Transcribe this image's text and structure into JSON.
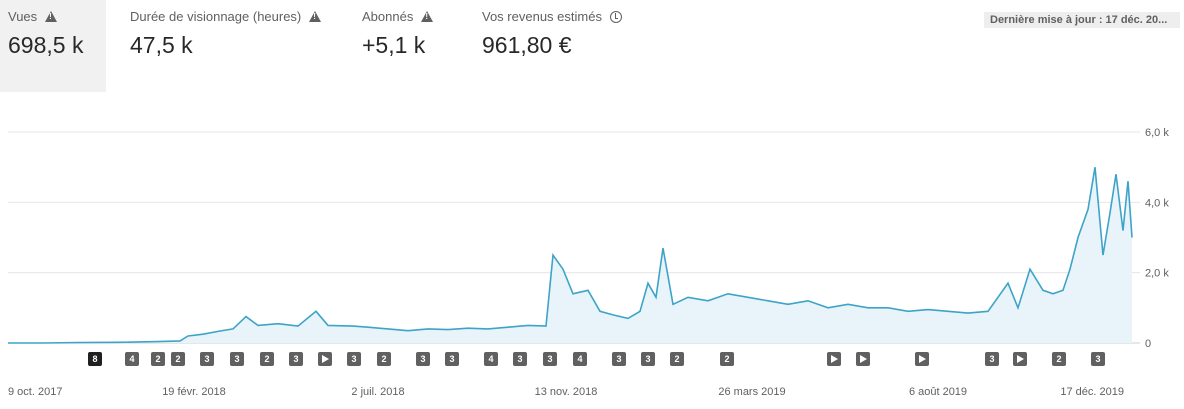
{
  "metrics": [
    {
      "label": "Vues",
      "value": "698,5 k",
      "icon": "warning-icon",
      "selected": true
    },
    {
      "label": "Durée de visionnage (heures)",
      "value": "47,5 k",
      "icon": "warning-icon",
      "selected": false
    },
    {
      "label": "Abonnés",
      "value": "+5,1 k",
      "icon": "warning-icon",
      "selected": false
    },
    {
      "label": "Vos revenus estimés",
      "value": "961,80 €",
      "icon": "clock-icon",
      "selected": false
    }
  ],
  "updated": "Dernière mise à jour : 17 déc. 20...",
  "chart_data": {
    "type": "area",
    "series": [
      {
        "name": "Vues",
        "color": "#3ea3c8",
        "points": [
          [
            "0",
            0
          ],
          [
            "35",
            0
          ],
          [
            "70",
            10
          ],
          [
            "110",
            20
          ],
          [
            "150",
            40
          ],
          [
            "172",
            60
          ],
          [
            "180",
            200
          ],
          [
            "195",
            250
          ],
          [
            "210",
            330
          ],
          [
            "225",
            400
          ],
          [
            "238",
            750
          ],
          [
            "250",
            500
          ],
          [
            "270",
            550
          ],
          [
            "290",
            480
          ],
          [
            "308",
            900
          ],
          [
            "320",
            500
          ],
          [
            "345",
            480
          ],
          [
            "360",
            450
          ],
          [
            "380",
            400
          ],
          [
            "400",
            350
          ],
          [
            "420",
            400
          ],
          [
            "440",
            380
          ],
          [
            "460",
            420
          ],
          [
            "480",
            400
          ],
          [
            "500",
            450
          ],
          [
            "520",
            500
          ],
          [
            "538",
            480
          ],
          [
            "545",
            2500
          ],
          [
            "555",
            2100
          ],
          [
            "565",
            1400
          ],
          [
            "580",
            1500
          ],
          [
            "592",
            900
          ],
          [
            "605",
            800
          ],
          [
            "620",
            700
          ],
          [
            "632",
            900
          ],
          [
            "640",
            1700
          ],
          [
            "648",
            1300
          ],
          [
            "655",
            2700
          ],
          [
            "665",
            1100
          ],
          [
            "680",
            1300
          ],
          [
            "700",
            1200
          ],
          [
            "720",
            1400
          ],
          [
            "740",
            1300
          ],
          [
            "760",
            1200
          ],
          [
            "780",
            1100
          ],
          [
            "800",
            1200
          ],
          [
            "820",
            1000
          ],
          [
            "840",
            1100
          ],
          [
            "860",
            1000
          ],
          [
            "880",
            1000
          ],
          [
            "900",
            900
          ],
          [
            "920",
            950
          ],
          [
            "940",
            900
          ],
          [
            "960",
            850
          ],
          [
            "980",
            900
          ],
          [
            "1000",
            1700
          ],
          [
            "1010",
            1000
          ],
          [
            "1022",
            2100
          ],
          [
            "1035",
            1500
          ],
          [
            "1045",
            1400
          ],
          [
            "1055",
            1500
          ],
          [
            "1062",
            2100
          ],
          [
            "1070",
            3000
          ],
          [
            "1080",
            3800
          ],
          [
            "1087",
            5000
          ],
          [
            "1095",
            2500
          ],
          [
            "1102",
            3700
          ],
          [
            "1108",
            4800
          ],
          [
            "1115",
            3200
          ],
          [
            "1120",
            4600
          ],
          [
            "1124",
            3000
          ]
        ]
      }
    ],
    "ylim": [
      0,
      6000
    ],
    "yticks": [
      "0",
      "2,0 k",
      "4,0 k",
      "6,0 k"
    ],
    "ytick_values": [
      0,
      2000,
      4000,
      6000
    ],
    "xticks": [
      "9 oct. 2017",
      "19 févr. 2018",
      "2 juil. 2018",
      "13 nov. 2018",
      "26 mars 2019",
      "6 août 2019",
      "17 déc. 2019"
    ],
    "grid": true,
    "markers": [
      "8",
      "4",
      "2",
      "2",
      "3",
      "3",
      "2",
      "3",
      "play",
      "3",
      "2",
      "3",
      "3",
      "4",
      "3",
      "3",
      "4",
      "3",
      "3",
      "2",
      "2",
      "play",
      "play",
      "play",
      "3",
      "play",
      "2",
      "3"
    ]
  }
}
